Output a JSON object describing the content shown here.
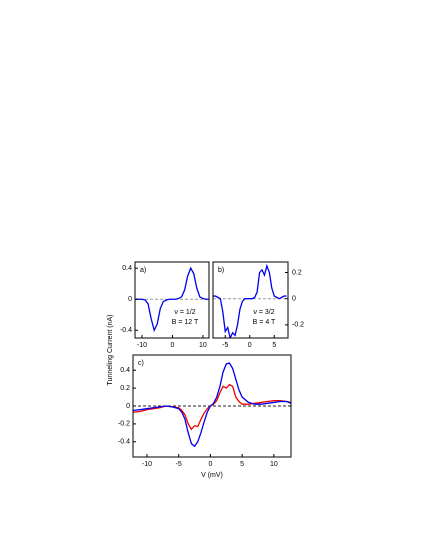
{
  "shared_ylabel": "Tunneling Current  (nA)",
  "chart_data": [
    {
      "type": "line",
      "panel_label": "a)",
      "annotations": [
        "ν = 1/2",
        "B = 12 T"
      ],
      "x": [
        -12,
        -11,
        -10,
        -9,
        -8,
        -7,
        -6,
        -5,
        -4,
        -3,
        -2,
        -1,
        0,
        1,
        2,
        3,
        4,
        5,
        6,
        7,
        8,
        9,
        10,
        11,
        12
      ],
      "series": [
        {
          "color": "#0000ee",
          "values": [
            0,
            0,
            0,
            -0.01,
            -0.06,
            -0.25,
            -0.4,
            -0.32,
            -0.12,
            -0.03,
            -0.01,
            0,
            0,
            0,
            0.01,
            0.03,
            0.12,
            0.3,
            0.4,
            0.33,
            0.14,
            0.03,
            0.01,
            0,
            0
          ]
        }
      ],
      "xlim": [
        -12.3,
        12
      ],
      "ylim": [
        -0.5,
        0.48
      ],
      "xticks": [
        -10,
        0,
        10
      ],
      "yticks": [
        -0.4,
        0,
        0.4
      ],
      "yaxis_side": "left",
      "hline": 0,
      "hline_color": "#999999"
    },
    {
      "type": "line",
      "panel_label": "b)",
      "annotations": [
        "ν = 3/2",
        "B = 4 T"
      ],
      "x": [
        -7.5,
        -7,
        -6.5,
        -6,
        -5.5,
        -5,
        -4.5,
        -4,
        -3.5,
        -3,
        -2.5,
        -2,
        -1.5,
        -1,
        -0.5,
        0,
        0.5,
        1,
        1.5,
        2,
        2.5,
        3,
        3.5,
        4,
        4.5,
        5,
        5.5,
        6,
        6.5,
        7,
        7.5
      ],
      "series": [
        {
          "color": "#0000ee",
          "values": [
            0.02,
            0.02,
            0.01,
            0,
            -0.1,
            -0.25,
            -0.22,
            -0.3,
            -0.26,
            -0.28,
            -0.2,
            -0.08,
            -0.02,
            0,
            0,
            0,
            0,
            0.01,
            0.05,
            0.2,
            0.22,
            0.18,
            0.25,
            0.2,
            0.08,
            0.02,
            0.01,
            0,
            0.01,
            0.02,
            0.02
          ]
        }
      ],
      "xlim": [
        -7.5,
        7.8
      ],
      "ylim": [
        -0.3,
        0.28
      ],
      "xticks": [
        -5,
        0,
        5
      ],
      "yticks": [
        -0.2,
        0,
        0.2
      ],
      "yaxis_side": "right",
      "hline": 0,
      "hline_color": "#999999"
    },
    {
      "type": "line",
      "panel_label": "c)",
      "xlabel": "V  (mV)",
      "x": [
        -12.2,
        -11,
        -10,
        -9,
        -8,
        -7,
        -6,
        -5,
        -4.5,
        -4,
        -3.5,
        -3,
        -2.5,
        -2,
        -1.5,
        -1,
        -0.5,
        0,
        0.5,
        1,
        1.5,
        2,
        2.5,
        3,
        3.5,
        4,
        4.5,
        5,
        6,
        7,
        8,
        9,
        10,
        11,
        12,
        12.7
      ],
      "series": [
        {
          "color": "#ee0000",
          "values": [
            -0.07,
            -0.06,
            -0.04,
            -0.03,
            -0.02,
            0,
            -0.01,
            -0.02,
            -0.05,
            -0.1,
            -0.2,
            -0.26,
            -0.22,
            -0.23,
            -0.15,
            -0.08,
            -0.03,
            0,
            0.02,
            0.06,
            0.15,
            0.22,
            0.2,
            0.24,
            0.22,
            0.1,
            0.05,
            0.02,
            0.02,
            0.03,
            0.04,
            0.05,
            0.06,
            0.06,
            0.05,
            0.04
          ]
        },
        {
          "color": "#0000ee",
          "values": [
            -0.05,
            -0.04,
            -0.03,
            -0.02,
            -0.01,
            0,
            -0.01,
            -0.03,
            -0.07,
            -0.15,
            -0.3,
            -0.42,
            -0.45,
            -0.4,
            -0.3,
            -0.18,
            -0.07,
            0,
            0.03,
            0.1,
            0.22,
            0.38,
            0.47,
            0.48,
            0.42,
            0.3,
            0.18,
            0.1,
            0.04,
            0.02,
            0.02,
            0.03,
            0.04,
            0.05,
            0.05,
            0.03
          ]
        }
      ],
      "xlim": [
        -12.2,
        12.7
      ],
      "ylim": [
        -0.57,
        0.57
      ],
      "xticks": [
        -10,
        -5,
        0,
        5,
        10
      ],
      "yticks": [
        -0.4,
        -0.2,
        0,
        0.2,
        0.4
      ],
      "yaxis_side": "left",
      "hline": 0,
      "hline_color": "#222222"
    }
  ]
}
